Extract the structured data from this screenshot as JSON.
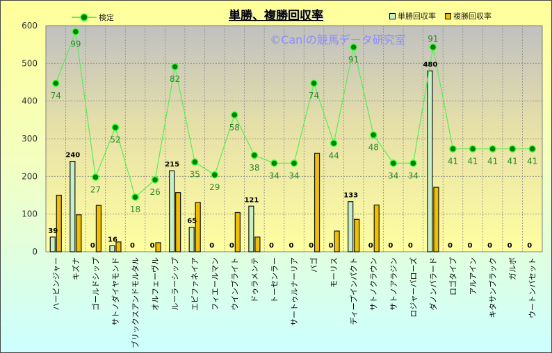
{
  "chart_data": {
    "type": "bar+line",
    "title": "単勝、複勝回収率",
    "watermark": "©Caniの競馬データ研究室",
    "ylim": [
      0,
      600
    ],
    "yticks": [
      "0",
      "100",
      "200",
      "300",
      "400",
      "500",
      "600"
    ],
    "grid": true,
    "legend_placement": "top",
    "categories": [
      "ハービンジャー",
      "キズナ",
      "ゴールドシップ",
      "サトノダイヤモンド",
      "ブリックスアンドモルタル",
      "オルフェーヴル",
      "ルーラーシップ",
      "エピファネイア",
      "フィエールマン",
      "ウインブライト",
      "ドゥラメンテ",
      "トーセンラー",
      "サートゥルナーリア",
      "バゴ",
      "モーリス",
      "ディープインパクト",
      "サトノクラウン",
      "サトノアラジン",
      "ロジャーバローズ",
      "ダノンバラード",
      "ロゴタイプ",
      "アルアイン",
      "キタサンブラック",
      "ガルボ",
      "ウートンバセット"
    ],
    "series": [
      {
        "name": "単勝回収率",
        "type": "bar",
        "color": "#c8f0c8",
        "values": [
          39,
          240,
          0,
          16,
          0,
          0,
          215,
          65,
          0,
          0,
          121,
          0,
          0,
          0,
          0,
          133,
          0,
          0,
          0,
          480,
          0,
          0,
          0,
          0,
          0
        ]
      },
      {
        "name": "複勝回収率",
        "type": "bar",
        "color": "#f0c000",
        "values": [
          150,
          98,
          123,
          26,
          0,
          24,
          157,
          131,
          0,
          104,
          39,
          0,
          0,
          261,
          55,
          86,
          124,
          0,
          0,
          171,
          0,
          0,
          0,
          0,
          0
        ]
      },
      {
        "name": "検定",
        "type": "line",
        "color": "#008000",
        "values": [
          447,
          584,
          198,
          330,
          145,
          191,
          491,
          238,
          204,
          363,
          256,
          235,
          235,
          447,
          288,
          543,
          310,
          235,
          235,
          543,
          273,
          273,
          273,
          273,
          273
        ],
        "labels": [
          "74",
          "99",
          "27",
          "52",
          "18",
          "26",
          "82",
          "35",
          "29",
          "58",
          "38",
          "34",
          "34",
          "74",
          "44",
          "91",
          "48",
          "34",
          "34",
          "91",
          "41",
          "41",
          "41",
          "41",
          "41"
        ]
      }
    ]
  }
}
